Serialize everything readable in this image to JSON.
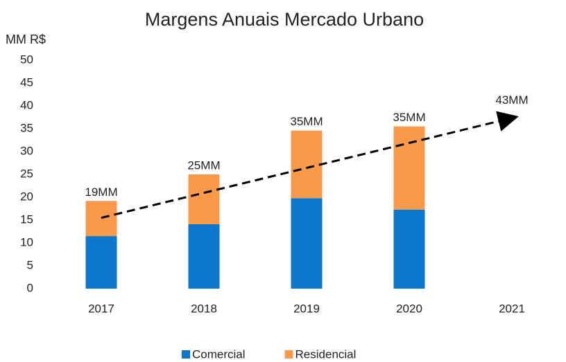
{
  "chart_data": {
    "type": "stacked_bar",
    "title": "Margens Anuais Mercado Urbano",
    "y_label": "MM R$",
    "categories": [
      "2017",
      "2018",
      "2019",
      "2020",
      "2021"
    ],
    "series": [
      {
        "name": "Comercial",
        "color": "#0a77cc",
        "values": [
          11.5,
          14.1,
          19.8,
          17.3,
          null
        ]
      },
      {
        "name": "Residencial",
        "color": "#f99a4a",
        "values": [
          7.7,
          10.9,
          14.8,
          18.2,
          null
        ]
      }
    ],
    "value_labels": [
      "19MM",
      "25MM",
      "35MM",
      "35MM",
      "43MM"
    ],
    "trend": {
      "start": 15.5,
      "end": 37.5
    },
    "ylim": [
      0,
      50
    ],
    "yticks": [
      0,
      5,
      10,
      15,
      20,
      25,
      30,
      35,
      40,
      45,
      50
    ],
    "legend": "bottom"
  }
}
